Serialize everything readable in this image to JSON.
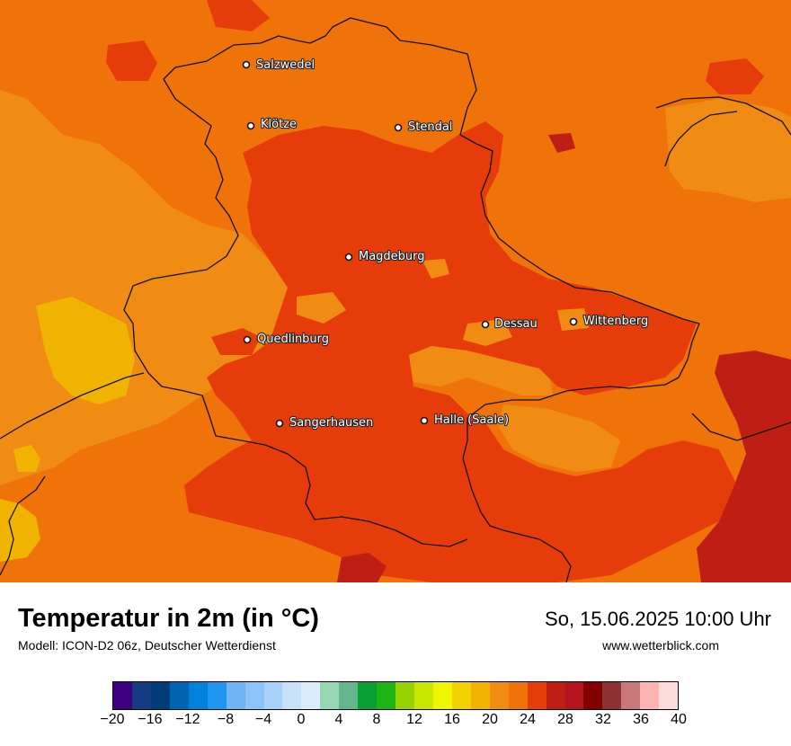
{
  "title": "Temperatur in 2m (in °C)",
  "model": "Modell: ICON-D2 06z, Deutscher Wetterdienst",
  "datetime": "So, 15.06.2025 10:00 Uhr",
  "website": "www.wetterblick.com",
  "cities": [
    {
      "name": "Salzwedel"
    },
    {
      "name": "Klötze"
    },
    {
      "name": "Stendal"
    },
    {
      "name": "Magdeburg"
    },
    {
      "name": "Dessau"
    },
    {
      "name": "Wittenberg"
    },
    {
      "name": "Quedlinburg"
    },
    {
      "name": "Sangerhausen"
    },
    {
      "name": "Halle (Saale)"
    }
  ],
  "legend": {
    "colors": [
      "#3c0080",
      "#143c82",
      "#003c78",
      "#0064b4",
      "#0082dc",
      "#1e96f0",
      "#6eb4f5",
      "#8cc3f8",
      "#a8d2fa",
      "#c8e1fb",
      "#dcebfc",
      "#96d7b4",
      "#64b48c",
      "#08a032",
      "#1eb414",
      "#96d200",
      "#c8e600",
      "#f0f500",
      "#f0d200",
      "#f0b400",
      "#f08c14",
      "#f0730a",
      "#e63c0a",
      "#be1e14",
      "#b4141e",
      "#820000",
      "#8c3232",
      "#c87878",
      "#ffb4b4",
      "#ffdcdc"
    ],
    "ticks": [
      "−20",
      "−16",
      "−12",
      "−8",
      "−4",
      "0",
      "4",
      "8",
      "12",
      "16",
      "20",
      "24",
      "28",
      "32",
      "36",
      "40"
    ]
  }
}
